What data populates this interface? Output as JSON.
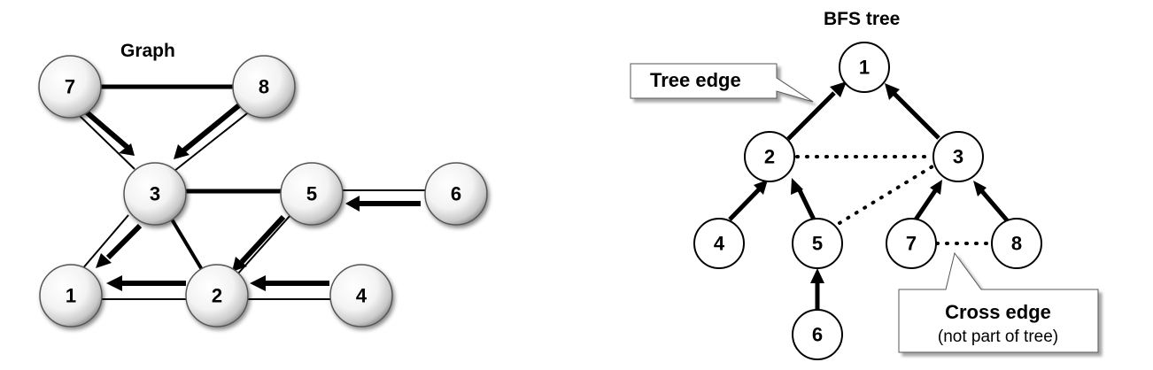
{
  "graph": {
    "title": "Graph",
    "nodes": {
      "n7": "7",
      "n8": "8",
      "n3": "3",
      "n5": "5",
      "n6": "6",
      "n1": "1",
      "n2": "2",
      "n4": "4"
    }
  },
  "bfs_tree": {
    "title": "BFS tree",
    "nodes": {
      "n1": "1",
      "n2": "2",
      "n3": "3",
      "n4": "4",
      "n5": "5",
      "n7": "7",
      "n8": "8",
      "n6": "6"
    },
    "callouts": {
      "tree_edge": "Tree edge",
      "cross_edge": "Cross edge",
      "cross_edge_note": "(not part of tree)"
    }
  }
}
